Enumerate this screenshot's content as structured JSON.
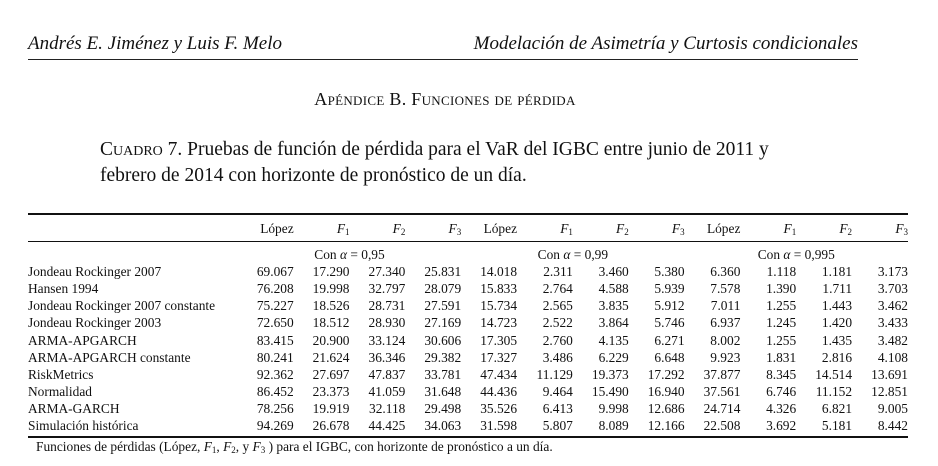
{
  "header": {
    "authors": "Andrés E. Jiménez y Luis F. Melo",
    "title": "Modelación de Asimetría y  Curtosis condicionales"
  },
  "appendix_title": "Apéndice B.   Funciones de pérdida",
  "caption": {
    "label": "Cuadro 7.",
    "text": "Pruebas de función de pérdida para el VaR del IGBC entre junio de 2011 y febrero de 2014 con horizonte de pronóstico de un día."
  },
  "table": {
    "columns": [
      "López",
      "F1",
      "F2",
      "F3",
      "López",
      "F1",
      "F2",
      "F3",
      "López",
      "F1",
      "F2",
      "F3"
    ],
    "groups": [
      "Con α = 0,95",
      "Con α = 0,99",
      "Con α = 0,995"
    ],
    "rows": [
      {
        "label": "Jondeau Rockinger 2007",
        "values": [
          "69.067",
          "17.290",
          "27.340",
          "25.831",
          "14.018",
          "2.311",
          "3.460",
          "5.380",
          "6.360",
          "1.118",
          "1.181",
          "3.173"
        ]
      },
      {
        "label": "Hansen 1994",
        "values": [
          "76.208",
          "19.998",
          "32.797",
          "28.079",
          "15.833",
          "2.764",
          "4.588",
          "5.939",
          "7.578",
          "1.390",
          "1.711",
          "3.703"
        ]
      },
      {
        "label": "Jondeau Rockinger 2007 constante",
        "values": [
          "75.227",
          "18.526",
          "28.731",
          "27.591",
          "15.734",
          "2.565",
          "3.835",
          "5.912",
          "7.011",
          "1.255",
          "1.443",
          "3.462"
        ]
      },
      {
        "label": "Jondeau Rockinger 2003",
        "values": [
          "72.650",
          "18.512",
          "28.930",
          "27.169",
          "14.723",
          "2.522",
          "3.864",
          "5.746",
          "6.937",
          "1.245",
          "1.420",
          "3.433"
        ]
      },
      {
        "label": "ARMA-APGARCH",
        "values": [
          "83.415",
          "20.900",
          "33.124",
          "30.606",
          "17.305",
          "2.760",
          "4.135",
          "6.271",
          "8.002",
          "1.255",
          "1.435",
          "3.482"
        ]
      },
      {
        "label": "ARMA-APGARCH constante",
        "values": [
          "80.241",
          "21.624",
          "36.346",
          "29.382",
          "17.327",
          "3.486",
          "6.229",
          "6.648",
          "9.923",
          "1.831",
          "2.816",
          "4.108"
        ]
      },
      {
        "label": "RiskMetrics",
        "values": [
          "92.362",
          "27.697",
          "47.837",
          "33.781",
          "47.434",
          "11.129",
          "19.373",
          "17.292",
          "37.877",
          "8.345",
          "14.514",
          "13.691"
        ]
      },
      {
        "label": "Normalidad",
        "values": [
          "86.452",
          "23.373",
          "41.059",
          "31.648",
          "44.436",
          "9.464",
          "15.490",
          "16.940",
          "37.561",
          "6.746",
          "11.152",
          "12.851"
        ]
      },
      {
        "label": "ARMA-GARCH",
        "values": [
          "78.256",
          "19.919",
          "32.118",
          "29.498",
          "35.526",
          "6.413",
          "9.998",
          "12.686",
          "24.714",
          "4.326",
          "6.821",
          "9.005"
        ]
      },
      {
        "label": "Simulación histórica",
        "values": [
          "94.269",
          "26.678",
          "44.425",
          "34.063",
          "31.598",
          "5.807",
          "8.089",
          "12.166",
          "22.508",
          "3.692",
          "5.181",
          "8.442"
        ]
      }
    ]
  },
  "footnote": "Funciones de pérdidas (López, F1, F2, y F3 ) para el IGBC, con horizonte de pronóstico a un día."
}
